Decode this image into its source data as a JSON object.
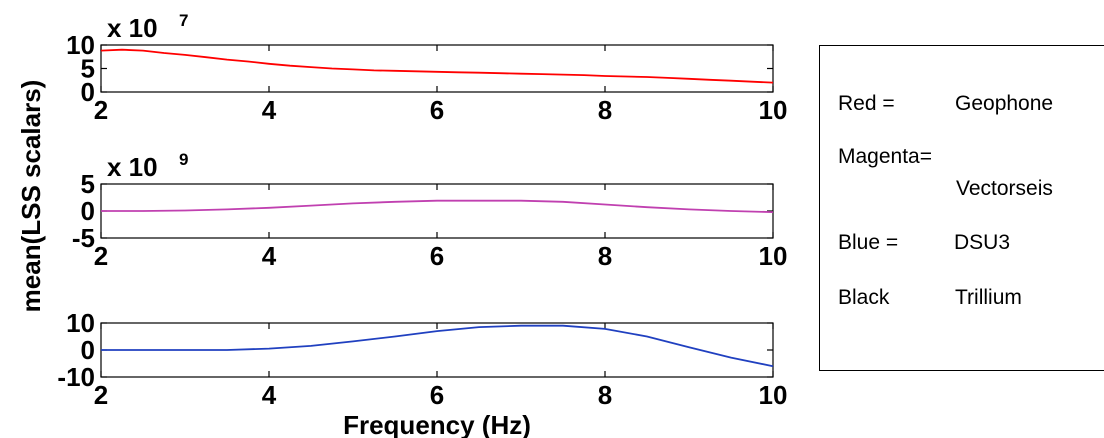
{
  "chart_data": [
    {
      "type": "line",
      "exponent_base": "x 10",
      "exponent_power": "7",
      "xlim": [
        2,
        10
      ],
      "ylim": [
        0,
        10
      ],
      "x_ticks": [
        2,
        4,
        6,
        8,
        10
      ],
      "y_ticks": [
        0,
        5,
        10
      ],
      "series": [
        {
          "color": "#ff0000",
          "x": [
            2.0,
            2.25,
            2.5,
            2.75,
            3.0,
            3.25,
            3.5,
            3.75,
            4.0,
            4.25,
            4.5,
            4.75,
            5.0,
            5.25,
            5.5,
            5.75,
            6.0,
            6.25,
            6.5,
            6.75,
            7.0,
            7.25,
            7.5,
            7.75,
            8.0,
            8.25,
            8.5,
            8.75,
            9.0,
            9.25,
            9.5,
            9.75,
            10.0
          ],
          "y": [
            8.8,
            9.0,
            8.8,
            8.3,
            7.9,
            7.4,
            6.9,
            6.5,
            6.0,
            5.6,
            5.3,
            5.0,
            4.8,
            4.6,
            4.5,
            4.4,
            4.3,
            4.2,
            4.1,
            4.0,
            3.9,
            3.8,
            3.7,
            3.6,
            3.4,
            3.3,
            3.2,
            3.0,
            2.8,
            2.6,
            2.4,
            2.2,
            2.0
          ]
        }
      ]
    },
    {
      "type": "line",
      "exponent_base": "x 10",
      "exponent_power": "9",
      "xlim": [
        2,
        10
      ],
      "ylim": [
        -5,
        5
      ],
      "x_ticks": [
        2,
        4,
        6,
        8,
        10
      ],
      "y_ticks": [
        -5,
        0,
        5
      ],
      "series": [
        {
          "color": "#c040b0",
          "x": [
            2.0,
            2.5,
            3.0,
            3.5,
            4.0,
            4.5,
            5.0,
            5.5,
            6.0,
            6.5,
            7.0,
            7.5,
            8.0,
            8.5,
            9.0,
            9.5,
            10.0
          ],
          "y": [
            0.0,
            0.0,
            0.1,
            0.3,
            0.6,
            1.0,
            1.4,
            1.7,
            1.9,
            1.9,
            1.9,
            1.7,
            1.2,
            0.7,
            0.3,
            0.0,
            -0.2
          ]
        }
      ]
    },
    {
      "type": "line",
      "xlabel": "Frequency (Hz)",
      "xlim": [
        2,
        10
      ],
      "ylim": [
        -10,
        10
      ],
      "x_ticks": [
        2,
        4,
        6,
        8,
        10
      ],
      "y_ticks": [
        -10,
        0,
        10
      ],
      "series": [
        {
          "color": "#2040c0",
          "x": [
            2.0,
            2.5,
            3.0,
            3.5,
            4.0,
            4.5,
            5.0,
            5.5,
            6.0,
            6.5,
            7.0,
            7.5,
            8.0,
            8.5,
            9.0,
            9.5,
            10.0
          ],
          "y": [
            0.0,
            0.0,
            0.0,
            0.0,
            0.5,
            1.5,
            3.2,
            5.0,
            7.0,
            8.5,
            9.0,
            9.0,
            7.8,
            5.0,
            1.0,
            -2.8,
            -6.0
          ]
        }
      ]
    }
  ],
  "ylabel": "mean(LSS scalars)",
  "legend": {
    "entries": [
      {
        "name": "Red =",
        "device": "Geophone"
      },
      {
        "name": "Magenta=",
        "device": "Vectorseis"
      },
      {
        "name": "Blue =",
        "device": "DSU3"
      },
      {
        "name": "Black",
        "device": "Trillium"
      }
    ]
  }
}
